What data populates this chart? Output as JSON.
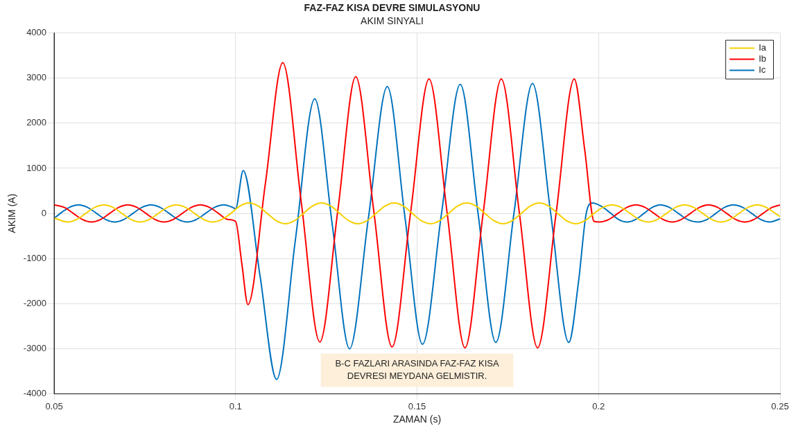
{
  "chart_data": {
    "type": "line",
    "title": "FAZ-FAZ KISA DEVRE SIMULASYONU",
    "subtitle": "AKIM SINYALI",
    "xlabel": "ZAMAN (s)",
    "ylabel": "AKIM (A)",
    "xlim": [
      0.05,
      0.25
    ],
    "xticks": [
      0.05,
      0.1,
      0.15,
      0.2,
      0.25
    ],
    "ylim": [
      -4000,
      4000
    ],
    "yticks": [
      -4000,
      -3000,
      -2000,
      -1000,
      0,
      1000,
      2000,
      3000,
      4000
    ],
    "grid": true,
    "legend": "top right",
    "marker": "none",
    "line_style": "solid",
    "annotations": [
      "B-C FAZLARI ARASINDA FAZ-FAZ KISA\nDEVRESI MEYDANA GELMISTIR."
    ],
    "series": [
      {
        "name": "Ia",
        "color": "#f5d000",
        "x": [
          0.05,
          0.0537,
          0.0562,
          0.0587,
          0.0612,
          0.0637,
          0.0662,
          0.0687,
          0.0712,
          0.0737,
          0.0762,
          0.0787,
          0.0812,
          0.0837,
          0.0862,
          0.0887,
          0.0912,
          0.0937,
          0.0962,
          0.0987,
          0.1012,
          0.1037,
          0.1062,
          0.1087,
          0.1112,
          0.1137,
          0.1162,
          0.1187,
          0.1212,
          0.1237,
          0.1262,
          0.1287,
          0.1312,
          0.1337,
          0.1362,
          0.1387,
          0.1412,
          0.1437,
          0.1462,
          0.1487,
          0.1512,
          0.1537,
          0.1562,
          0.1587,
          0.1612,
          0.1637,
          0.1662,
          0.1687,
          0.1712,
          0.1737,
          0.1762,
          0.1787,
          0.1812,
          0.1837,
          0.1862,
          0.1887,
          0.1912,
          0.1937,
          0.1962,
          0.1987,
          0.2012,
          0.2037,
          0.2062,
          0.2087,
          0.2112,
          0.2137,
          0.2162,
          0.2187,
          0.2212,
          0.2237,
          0.2262,
          0.2287,
          0.2312,
          0.2337,
          0.2362,
          0.2387,
          0.2412,
          0.2437,
          0.2462,
          0.2487,
          0.25
        ],
        "values": [
          -100,
          -190,
          -134,
          0,
          134,
          190,
          134,
          0,
          -134,
          -190,
          -134,
          0,
          134,
          190,
          134,
          0,
          -134,
          -190,
          -134,
          0,
          163,
          230,
          163,
          0,
          -163,
          -230,
          -163,
          0,
          163,
          230,
          163,
          0,
          -163,
          -230,
          -163,
          0,
          163,
          230,
          163,
          0,
          -163,
          -230,
          -163,
          0,
          163,
          230,
          163,
          0,
          -163,
          -230,
          -163,
          0,
          163,
          230,
          163,
          0,
          -163,
          -230,
          -163,
          0,
          134,
          190,
          134,
          0,
          -134,
          -190,
          -134,
          0,
          134,
          190,
          134,
          0,
          -134,
          -190,
          -134,
          0,
          134,
          190,
          134,
          0,
          -70
        ]
      },
      {
        "name": "Ib",
        "color": "#ff0000",
        "x": [
          0.05,
          0.0528,
          0.0553,
          0.0578,
          0.0603,
          0.0628,
          0.0653,
          0.0678,
          0.0703,
          0.0728,
          0.0753,
          0.0778,
          0.0803,
          0.0828,
          0.0853,
          0.0878,
          0.0903,
          0.0928,
          0.0953,
          0.0978,
          0.1,
          0.1017,
          0.1034,
          0.1082,
          0.113,
          0.1181,
          0.1232,
          0.1282,
          0.1331,
          0.1381,
          0.1431,
          0.1482,
          0.1533,
          0.1583,
          0.1632,
          0.1682,
          0.1732,
          0.1782,
          0.1832,
          0.1883,
          0.1933,
          0.1962,
          0.1988,
          0.2003,
          0.2028,
          0.2053,
          0.2078,
          0.2103,
          0.2128,
          0.2153,
          0.2178,
          0.2203,
          0.2228,
          0.2253,
          0.2278,
          0.2303,
          0.2328,
          0.2353,
          0.2378,
          0.2403,
          0.2428,
          0.2453,
          0.2478,
          0.25
        ],
        "values": [
          190,
          134,
          0,
          -134,
          -190,
          -134,
          0,
          134,
          190,
          134,
          0,
          -134,
          -190,
          -134,
          0,
          134,
          190,
          134,
          0,
          -134,
          -180,
          -1100,
          -2020,
          660,
          3340,
          245,
          -2850,
          90,
          3030,
          35,
          -2960,
          10,
          2980,
          0,
          -2980,
          0,
          2980,
          0,
          -2980,
          0,
          2980,
          1400,
          -180,
          -190,
          -134,
          0,
          134,
          190,
          134,
          0,
          -134,
          -190,
          -134,
          0,
          134,
          190,
          134,
          0,
          -134,
          -190,
          -134,
          0,
          134,
          185
        ]
      },
      {
        "name": "Ic",
        "color": "#0072bd",
        "x": [
          0.05,
          0.0517,
          0.0542,
          0.0567,
          0.0592,
          0.0617,
          0.0642,
          0.0667,
          0.0692,
          0.0717,
          0.0742,
          0.0767,
          0.0792,
          0.0817,
          0.0842,
          0.0867,
          0.0892,
          0.0917,
          0.0942,
          0.0967,
          0.0992,
          0.1,
          0.1021,
          0.1067,
          0.1113,
          0.1165,
          0.1218,
          0.1266,
          0.1314,
          0.1366,
          0.1418,
          0.1466,
          0.1515,
          0.1567,
          0.1619,
          0.1668,
          0.1717,
          0.1767,
          0.1818,
          0.1868,
          0.1918,
          0.1945,
          0.1966,
          0.1983,
          0.2007,
          0.2031,
          0.2055,
          0.2079,
          0.2102,
          0.2125,
          0.2148,
          0.217,
          0.2195,
          0.222,
          0.2245,
          0.2275,
          0.2299,
          0.2323,
          0.2347,
          0.2372,
          0.2397,
          0.2422,
          0.2447,
          0.2472,
          0.25
        ],
        "values": [
          -110,
          0,
          134,
          190,
          134,
          0,
          -134,
          -190,
          -134,
          0,
          134,
          190,
          134,
          0,
          -134,
          -190,
          -134,
          0,
          134,
          190,
          134,
          100,
          950,
          -1365,
          -3680,
          -570,
          2540,
          -230,
          -3000,
          -95,
          2810,
          -45,
          -2900,
          -20,
          2860,
          0,
          -2860,
          10,
          2880,
          10,
          -2860,
          -1500,
          0,
          230,
          160,
          20,
          -134,
          -190,
          -134,
          0,
          134,
          190,
          134,
          0,
          -134,
          -190,
          -134,
          0,
          134,
          190,
          134,
          0,
          -134,
          -190,
          -120
        ]
      }
    ]
  }
}
